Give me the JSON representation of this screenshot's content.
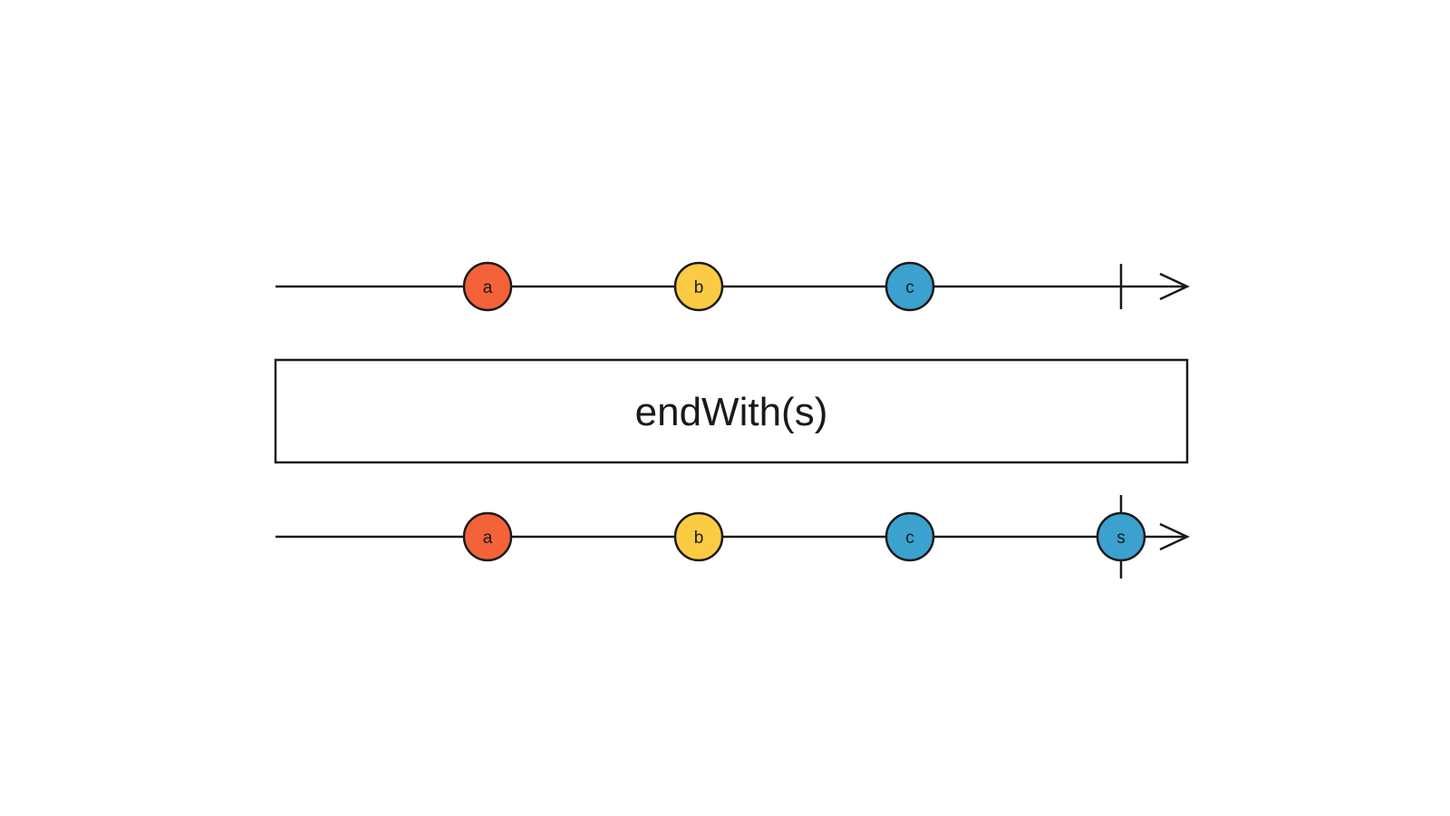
{
  "operator": {
    "label": "endWith(s)"
  },
  "colors": {
    "stroke": "#1a1a1a",
    "background": "#ffffff",
    "a": "#f4623a",
    "b": "#fbcb43",
    "c": "#3ba1ce",
    "s": "#3ba1ce"
  },
  "input_stream": {
    "events": [
      {
        "label": "a",
        "time": 1,
        "color_key": "a"
      },
      {
        "label": "b",
        "time": 2,
        "color_key": "b"
      },
      {
        "label": "c",
        "time": 3,
        "color_key": "c"
      }
    ],
    "completes_at": 4
  },
  "output_stream": {
    "events": [
      {
        "label": "a",
        "time": 1,
        "color_key": "a"
      },
      {
        "label": "b",
        "time": 2,
        "color_key": "b"
      },
      {
        "label": "c",
        "time": 3,
        "color_key": "c"
      },
      {
        "label": "s",
        "time": 4,
        "color_key": "s"
      }
    ],
    "completes_at": 4
  }
}
